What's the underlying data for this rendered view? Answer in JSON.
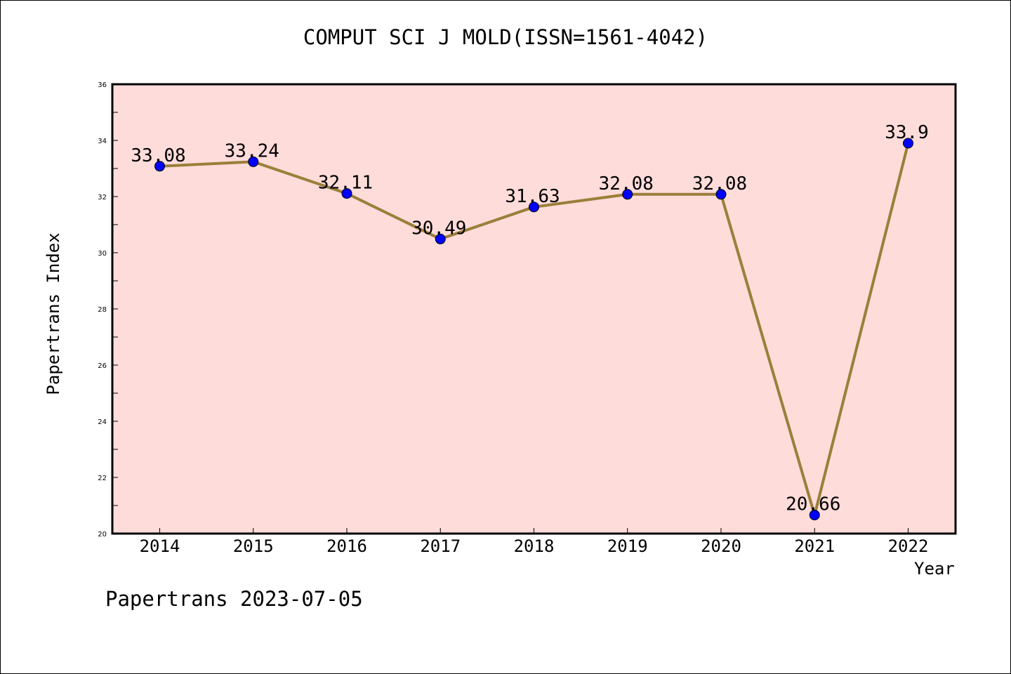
{
  "chart_data": {
    "type": "line",
    "title": "COMPUT SCI J MOLD(ISSN=1561-4042)",
    "xlabel": "Year",
    "ylabel": "Papertrans Index",
    "categories": [
      "2014",
      "2015",
      "2016",
      "2017",
      "2018",
      "2019",
      "2020",
      "2021",
      "2022"
    ],
    "series": [
      {
        "values": [
          33.08,
          33.24,
          32.11,
          30.49,
          31.63,
          32.08,
          32.08,
          20.66,
          33.9
        ],
        "labels": [
          "33.08",
          "33.24",
          "32.11",
          "30.49",
          "31.63",
          "32.08",
          "32.08",
          "20.66",
          "33.9"
        ]
      }
    ],
    "ylim": [
      20,
      36
    ],
    "yticks": [
      "20",
      "22",
      "24",
      "26",
      "28",
      "30",
      "32",
      "34",
      "36"
    ],
    "grid": false,
    "plot_background": "#fddcda",
    "line_color": "#9b7f3a",
    "marker_color": "#0000ff"
  },
  "footer": "Papertrans 2023-07-05"
}
